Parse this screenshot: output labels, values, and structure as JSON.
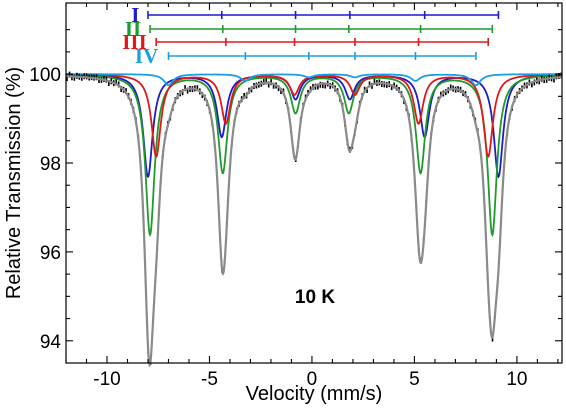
{
  "chart_data": {
    "type": "line",
    "title": "",
    "xlabel": "Velocity (mm/s)",
    "ylabel": "Relative Transmission (%)",
    "xlim": [
      -12,
      12.2
    ],
    "ylim": [
      93.5,
      101.6
    ],
    "xticks": [
      -10,
      -5,
      0,
      5,
      10
    ],
    "yticks": [
      94,
      96,
      98,
      100
    ],
    "grid": false,
    "legend": "none",
    "annotation": "10 K",
    "sextets": [
      {
        "label": "I",
        "color": "#1c1ccc",
        "lines": [
          -8.0,
          -4.4,
          -0.8,
          1.85,
          5.5,
          9.1
        ],
        "depths": [
          2.3,
          1.4,
          0.55,
          0.55,
          1.4,
          2.3
        ]
      },
      {
        "label": "II",
        "color": "#1f9a2c",
        "lines": [
          -7.9,
          -4.35,
          -0.8,
          1.8,
          5.3,
          8.8
        ],
        "depths": [
          3.6,
          2.2,
          0.85,
          0.85,
          2.2,
          3.6
        ]
      },
      {
        "label": "III",
        "color": "#e01818",
        "lines": [
          -7.6,
          -4.2,
          -0.85,
          2.1,
          5.2,
          8.6
        ],
        "depths": [
          1.85,
          1.1,
          0.45,
          0.45,
          1.1,
          1.85
        ]
      },
      {
        "label": "IV",
        "color": "#1a9ee6",
        "lines": [
          -7.0,
          -3.25,
          -0.15,
          2.1,
          5.05,
          8.0
        ],
        "depths": [
          0.25,
          0.15,
          0.07,
          0.07,
          0.15,
          0.25
        ]
      }
    ],
    "series": [
      {
        "name": "",
        "kind": "data",
        "color": "#000000"
      },
      {
        "name": "",
        "kind": "fit",
        "color": "#8a8a8a"
      }
    ],
    "line_width_mm_s": 0.55,
    "baseline": 100.0
  }
}
